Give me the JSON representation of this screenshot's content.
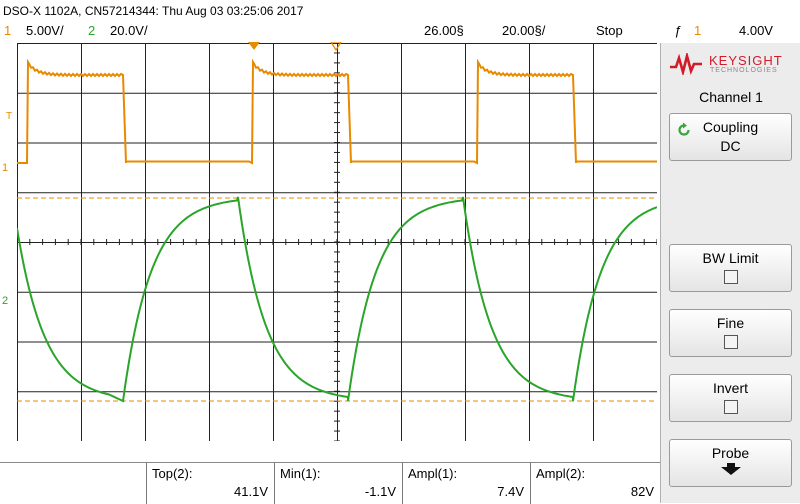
{
  "header": {
    "title": "DSO-X 1102A, CN57214344: Thu Aug 03 03:25:06 2017"
  },
  "status": {
    "ch1_num": "1",
    "ch1_scale": "5.00V/",
    "ch2_num": "2",
    "ch2_scale": "20.0V/",
    "time_pos": "26.00§",
    "time_scale": "20.00§/",
    "run_state": "Stop",
    "trig_icon": "ƒ",
    "trig_channel": "1",
    "trig_level": "4.00V"
  },
  "plot": {
    "trig_marker": "T",
    "ch1_marker": "1",
    "ch2_marker": "2"
  },
  "panel": {
    "brand": "KEYSIGHT",
    "brand_sub": "TECHNOLOGIES",
    "channel_title": "Channel 1",
    "coupling_label": "Coupling",
    "coupling_value": "DC",
    "bw_limit_label": "BW Limit",
    "fine_label": "Fine",
    "invert_label": "Invert",
    "probe_label": "Probe"
  },
  "measurements": [
    {
      "label": "Top(2):",
      "value": "41.1V"
    },
    {
      "label": "Min(1):",
      "value": "-1.1V"
    },
    {
      "label": "Ampl(1):",
      "value": "7.4V"
    },
    {
      "label": "Ampl(2):",
      "value": "82V"
    }
  ],
  "colors": {
    "ch1": "#e88a00",
    "ch2": "#2aa52a",
    "grid": "#222222",
    "brand": "#d11a2a"
  }
}
